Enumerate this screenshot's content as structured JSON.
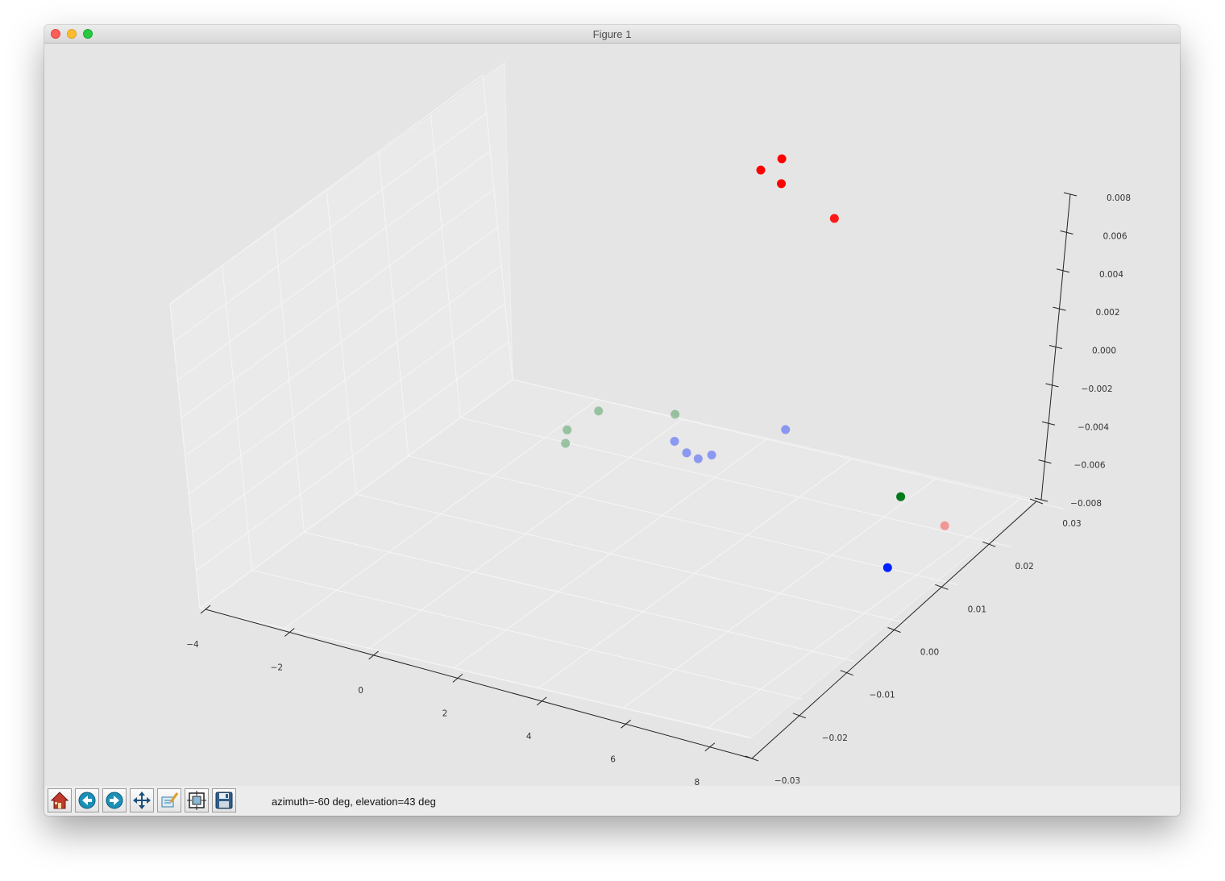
{
  "window": {
    "title": "Figure 1"
  },
  "toolbar": {
    "buttons": [
      {
        "name": "home-button",
        "icon": "home-icon"
      },
      {
        "name": "back-button",
        "icon": "back-arrow-icon"
      },
      {
        "name": "forward-button",
        "icon": "forward-arrow-icon"
      },
      {
        "name": "pan-button",
        "icon": "pan-arrows-icon"
      },
      {
        "name": "zoom-button",
        "icon": "zoom-rect-icon"
      },
      {
        "name": "subplots-button",
        "icon": "subplots-icon"
      },
      {
        "name": "save-button",
        "icon": "floppy-disk-icon"
      }
    ],
    "status": "azimuth=-60 deg, elevation=43 deg"
  },
  "chart_data": {
    "type": "scatter",
    "projection": "3d",
    "view": {
      "azimuth": -60,
      "elevation": 43
    },
    "x_ticks": [
      "−4",
      "−2",
      "0",
      "2",
      "4",
      "6",
      "8"
    ],
    "y_ticks": [
      "−0.03",
      "−0.02",
      "−0.01",
      "0.00",
      "0.01",
      "0.02",
      "0.03"
    ],
    "z_ticks": [
      "−0.008",
      "−0.006",
      "−0.004",
      "−0.002",
      "0.000",
      "0.002",
      "0.004",
      "0.006",
      "0.008"
    ],
    "xlim": [
      -4,
      9
    ],
    "ylim": [
      -0.03,
      0.03
    ],
    "zlim": [
      -0.008,
      0.008
    ],
    "grid": true,
    "colors": {
      "red": "#ff0000",
      "green": "#007a1a",
      "blue": "#0022ff",
      "pane": "#e9e9e9",
      "background": "#e5e5e5"
    },
    "points": [
      {
        "x": 3.3,
        "y": 0.028,
        "z": 0.0078,
        "color": "#ff0000",
        "alpha": 1.0
      },
      {
        "x": 2.9,
        "y": 0.027,
        "z": 0.0072,
        "color": "#ff0000",
        "alpha": 1.0
      },
      {
        "x": 3.5,
        "y": 0.026,
        "z": 0.007,
        "color": "#ff0000",
        "alpha": 1.0
      },
      {
        "x": 4.7,
        "y": 0.026,
        "z": 0.0058,
        "color": "#ff0000",
        "alpha": 0.9
      },
      {
        "x": 8.8,
        "y": 0.01,
        "z": -0.005,
        "color": "#ff0000",
        "alpha": 0.35
      },
      {
        "x": 7.4,
        "y": 0.013,
        "z": -0.0048,
        "color": "#007a1a",
        "alpha": 1.0
      },
      {
        "x": 8.4,
        "y": 0.002,
        "z": -0.0058,
        "color": "#0022ff",
        "alpha": 1.0
      },
      {
        "x": 4.1,
        "y": 0.018,
        "z": -0.004,
        "color": "#0022ff",
        "alpha": 0.4
      },
      {
        "x": 2.2,
        "y": 0.012,
        "z": -0.0044,
        "color": "#0022ff",
        "alpha": 0.4
      },
      {
        "x": 2.6,
        "y": 0.011,
        "z": -0.0046,
        "color": "#0022ff",
        "alpha": 0.4
      },
      {
        "x": 3.0,
        "y": 0.01,
        "z": -0.0045,
        "color": "#0022ff",
        "alpha": 0.4
      },
      {
        "x": 3.2,
        "y": 0.011,
        "z": -0.0044,
        "color": "#0022ff",
        "alpha": 0.4
      },
      {
        "x": 1.6,
        "y": 0.017,
        "z": -0.0043,
        "color": "#007a1a",
        "alpha": 0.35
      },
      {
        "x": 0.3,
        "y": 0.013,
        "z": -0.004,
        "color": "#007a1a",
        "alpha": 0.35
      },
      {
        "x": -0.1,
        "y": 0.01,
        "z": -0.0046,
        "color": "#007a1a",
        "alpha": 0.35
      },
      {
        "x": 0.1,
        "y": 0.008,
        "z": -0.0048,
        "color": "#007a1a",
        "alpha": 0.35
      }
    ]
  }
}
